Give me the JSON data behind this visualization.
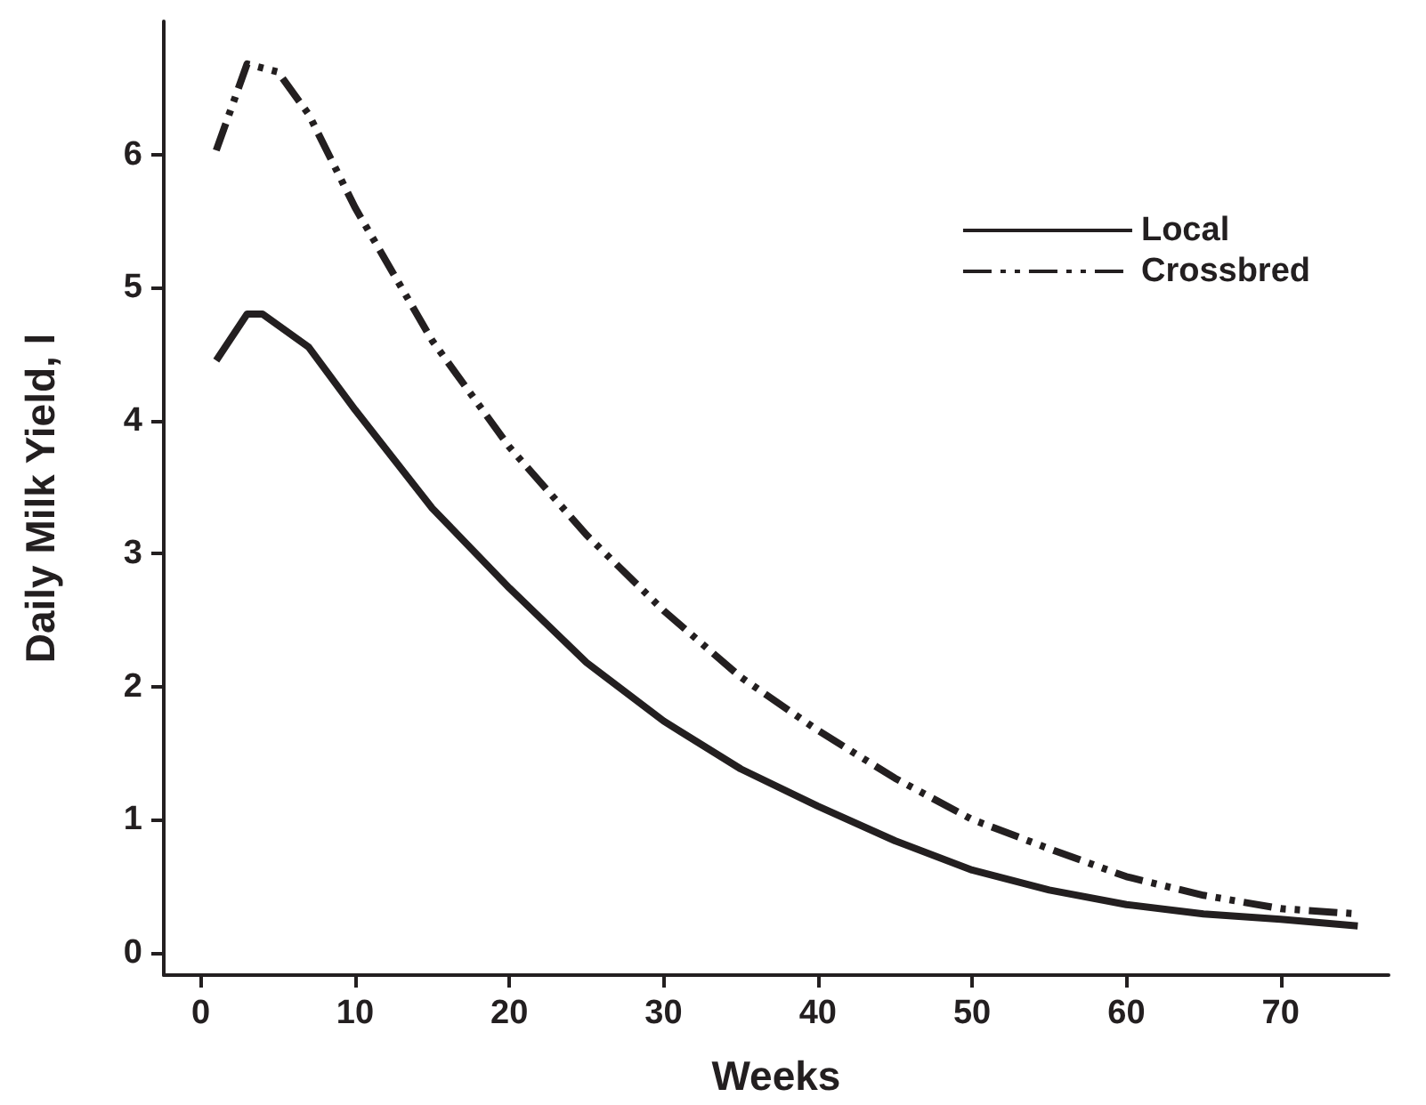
{
  "chart_data": {
    "type": "line",
    "xlabel": "Weeks",
    "ylabel": "Daily Milk Yield, l",
    "xlim": [
      -2.4,
      77
    ],
    "xticks": [
      0,
      10,
      20,
      30,
      40,
      50,
      60,
      70
    ],
    "ylim": [
      -0.17,
      7
    ],
    "yticks": [
      0,
      1,
      2,
      3,
      4,
      5,
      6
    ],
    "grid": false,
    "legend": "top right",
    "marker": "none",
    "series": [
      {
        "name": "Local",
        "color": "#231f20",
        "line_style": "solid",
        "x": [
          1,
          3,
          4,
          7,
          10,
          15,
          20,
          25,
          30,
          35,
          40,
          45,
          50,
          55,
          60,
          65,
          70,
          75
        ],
        "values": [
          4.45,
          4.8,
          4.8,
          4.55,
          4.08,
          3.34,
          2.74,
          2.18,
          1.74,
          1.38,
          1.1,
          0.84,
          0.62,
          0.47,
          0.36,
          0.29,
          0.25,
          0.2
        ]
      },
      {
        "name": "Crossbred",
        "color": "#231f20",
        "line_style": "dashed",
        "x": [
          1,
          3,
          5,
          7,
          10,
          15,
          20,
          25,
          30,
          35,
          40,
          45,
          50,
          55,
          60,
          65,
          70,
          75
        ],
        "values": [
          6.03,
          6.68,
          6.62,
          6.3,
          5.6,
          4.6,
          3.8,
          3.14,
          2.57,
          2.07,
          1.67,
          1.31,
          1.0,
          0.78,
          0.57,
          0.43,
          0.33,
          0.29
        ]
      }
    ]
  }
}
